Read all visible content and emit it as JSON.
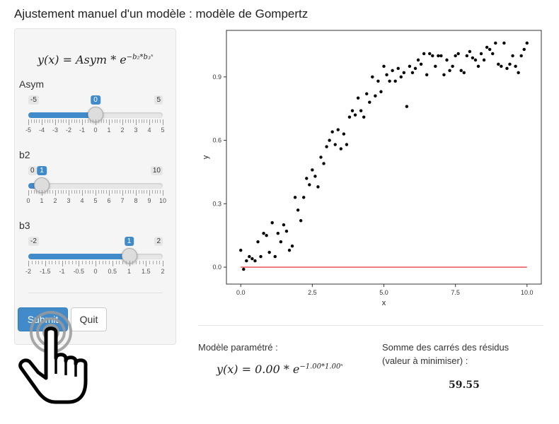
{
  "title": "Ajustement manuel d'un modèle : modèle de Gompertz",
  "sidebar": {
    "formula": {
      "lhs": "y(x) = Asym * e",
      "exponent": "−b₂*b₃ˣ"
    },
    "sliders": [
      {
        "label": "Asym",
        "min": -5,
        "max": 5,
        "value": 0,
        "min_text": "-5",
        "max_text": "5",
        "value_text": "0",
        "tick_labels": [
          "-5",
          "-4",
          "-3",
          "-2",
          "-1",
          "0",
          "1",
          "2",
          "3",
          "4",
          "5"
        ]
      },
      {
        "label": "b2",
        "min": 0,
        "max": 10,
        "value": 1,
        "min_text": "0",
        "max_text": "10",
        "value_text": "1",
        "tick_labels": [
          "0",
          "1",
          "2",
          "3",
          "4",
          "5",
          "6",
          "7",
          "8",
          "9",
          "10"
        ]
      },
      {
        "label": "b3",
        "min": -2,
        "max": 2,
        "value": 1,
        "min_text": "-2",
        "max_text": "2",
        "value_text": "1",
        "tick_labels": [
          "-2",
          "-1.5",
          "-1",
          "-0.5",
          "0",
          "0.5",
          "1",
          "1.5",
          "2"
        ]
      }
    ],
    "submit_label": "Submit",
    "quit_label": "Quit"
  },
  "results": {
    "model_label": "Modèle paramétré :",
    "model_formula_lhs": "y(x) = 0.00 * e",
    "model_formula_exponent": "−1.00*1.00ˣ",
    "sse_label_line1": "Somme des carrés des résidus",
    "sse_label_line2": "(valeur à minimiser) :",
    "sse_value": "59.55"
  },
  "colors": {
    "accent": "#428bca",
    "fit_line": "#e8141b",
    "points": "#000000"
  },
  "cursor_icon": "hand-pointer-icon",
  "chart_data": {
    "type": "scatter",
    "xlabel": "x",
    "ylabel": "y",
    "xlim": [
      -0.5,
      10.5
    ],
    "ylim": [
      -0.08,
      1.12
    ],
    "xticks": [
      0,
      2.5,
      5,
      7.5,
      10
    ],
    "xtick_labels": [
      "0.0",
      "2.5",
      "5.0",
      "7.5",
      "10.0"
    ],
    "yticks": [
      0,
      0.3,
      0.6,
      0.9
    ],
    "ytick_labels": [
      "0.0",
      "0.3",
      "0.6",
      "0.9"
    ],
    "grid": false,
    "series": [
      {
        "points": [
          [
            0.0,
            0.08
          ],
          [
            0.1,
            -0.01
          ],
          [
            0.2,
            0.03
          ],
          [
            0.3,
            0.05
          ],
          [
            0.4,
            0.04
          ],
          [
            0.5,
            0.03
          ],
          [
            0.6,
            0.12
          ],
          [
            0.7,
            0.05
          ],
          [
            0.8,
            0.16
          ],
          [
            0.9,
            0.15
          ],
          [
            1.0,
            0.07
          ],
          [
            1.1,
            0.21
          ],
          [
            1.2,
            0.05
          ],
          [
            1.3,
            0.16
          ],
          [
            1.4,
            0.12
          ],
          [
            1.5,
            0.2
          ],
          [
            1.6,
            0.17
          ],
          [
            1.7,
            0.08
          ],
          [
            1.8,
            0.1
          ],
          [
            1.9,
            0.33
          ],
          [
            2.0,
            0.27
          ],
          [
            2.1,
            0.22
          ],
          [
            2.2,
            0.33
          ],
          [
            2.3,
            0.42
          ],
          [
            2.4,
            0.39
          ],
          [
            2.5,
            0.46
          ],
          [
            2.6,
            0.43
          ],
          [
            2.7,
            0.38
          ],
          [
            2.8,
            0.52
          ],
          [
            2.9,
            0.49
          ],
          [
            3.0,
            0.57
          ],
          [
            3.1,
            0.6
          ],
          [
            3.2,
            0.64
          ],
          [
            3.3,
            0.58
          ],
          [
            3.4,
            0.65
          ],
          [
            3.5,
            0.56
          ],
          [
            3.6,
            0.63
          ],
          [
            3.7,
            0.58
          ],
          [
            3.8,
            0.71
          ],
          [
            3.9,
            0.74
          ],
          [
            4.0,
            0.72
          ],
          [
            4.1,
            0.8
          ],
          [
            4.2,
            0.74
          ],
          [
            4.3,
            0.71
          ],
          [
            4.4,
            0.82
          ],
          [
            4.5,
            0.78
          ],
          [
            4.6,
            0.9
          ],
          [
            4.7,
            0.81
          ],
          [
            4.8,
            0.88
          ],
          [
            4.9,
            0.83
          ],
          [
            5.0,
            0.95
          ],
          [
            5.1,
            0.91
          ],
          [
            5.2,
            0.88
          ],
          [
            5.3,
            0.93
          ],
          [
            5.4,
            0.88
          ],
          [
            5.5,
            0.94
          ],
          [
            5.6,
            0.9
          ],
          [
            5.7,
            0.92
          ],
          [
            5.8,
            0.76
          ],
          [
            5.9,
            0.95
          ],
          [
            6.0,
            0.92
          ],
          [
            6.1,
            0.94
          ],
          [
            6.2,
            0.98
          ],
          [
            6.3,
            0.96
          ],
          [
            6.4,
            1.01
          ],
          [
            6.5,
            0.91
          ],
          [
            6.6,
            1.01
          ],
          [
            6.7,
            1.0
          ],
          [
            6.8,
            0.95
          ],
          [
            6.9,
            1.0
          ],
          [
            7.0,
            1.0
          ],
          [
            7.1,
            0.91
          ],
          [
            7.2,
            0.98
          ],
          [
            7.3,
            0.93
          ],
          [
            7.4,
            0.95
          ],
          [
            7.5,
            1.0
          ],
          [
            7.6,
            1.01
          ],
          [
            7.7,
            0.93
          ],
          [
            7.8,
            0.92
          ],
          [
            7.9,
            1.0
          ],
          [
            8.0,
            1.02
          ],
          [
            8.1,
            0.99
          ],
          [
            8.2,
            0.98
          ],
          [
            8.3,
            0.95
          ],
          [
            8.4,
            1.01
          ],
          [
            8.5,
            0.98
          ],
          [
            8.6,
            1.04
          ],
          [
            8.7,
            1.03
          ],
          [
            8.8,
            1.01
          ],
          [
            8.9,
            1.06
          ],
          [
            9.0,
            0.96
          ],
          [
            9.1,
            0.95
          ],
          [
            9.2,
            1.06
          ],
          [
            9.3,
            0.94
          ],
          [
            9.4,
            0.96
          ],
          [
            9.5,
            1.0
          ],
          [
            9.6,
            0.95
          ],
          [
            9.7,
            0.92
          ],
          [
            9.8,
            1.0
          ],
          [
            9.9,
            1.03
          ],
          [
            10.0,
            1.06
          ]
        ]
      },
      {
        "type": "line",
        "points": [
          [
            0,
            0
          ],
          [
            10,
            0
          ]
        ]
      }
    ]
  }
}
